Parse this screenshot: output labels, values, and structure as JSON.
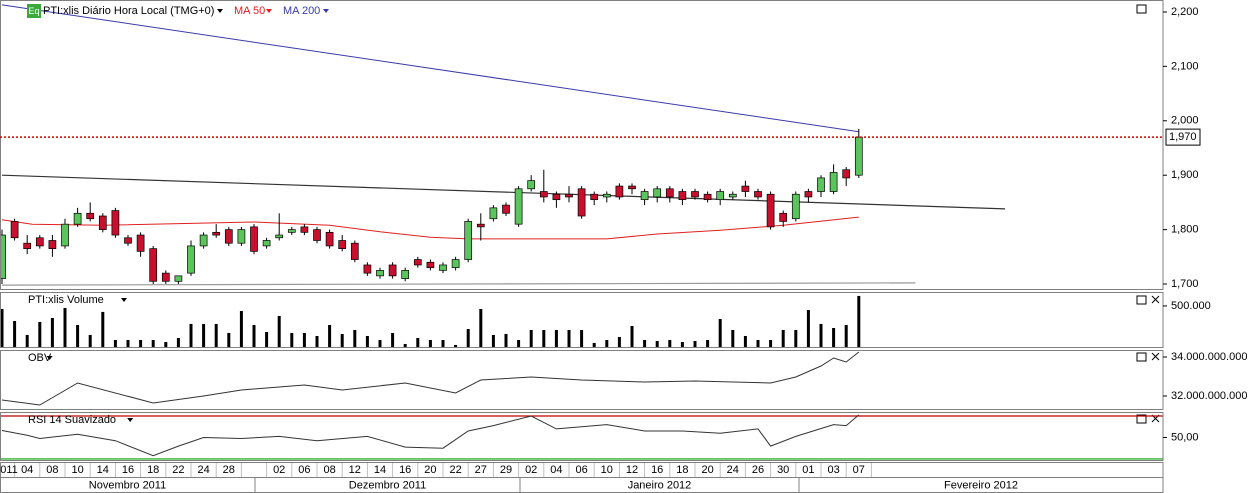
{
  "chart_data": [
    {
      "type": "candlestick",
      "badge": "Eq",
      "title": "PTI:xlis Diário Hora Local (TMG+0)",
      "open": [
        1710,
        1815,
        1775,
        1785,
        1780,
        1770,
        1810,
        1830,
        1825,
        1835,
        1785,
        1790,
        1765,
        1720,
        1705,
        1720,
        1770,
        1795,
        1800,
        1775,
        1805,
        1770,
        1785,
        1795,
        1805,
        1800,
        1795,
        1780,
        1775,
        1735,
        1715,
        1735,
        1710,
        1745,
        1740,
        1725,
        1730,
        1745,
        1810,
        1820,
        1845,
        1810,
        1875,
        1870,
        1865,
        1865,
        1875,
        1865,
        1860,
        1880,
        1880,
        1855,
        1860,
        1875,
        1870,
        1870,
        1865,
        1855,
        1860,
        1880,
        1870,
        1865,
        1830,
        1820,
        1870,
        1870,
        1870,
        1910,
        1900
      ],
      "high": [
        1800,
        1820,
        1790,
        1790,
        1790,
        1820,
        1840,
        1850,
        1830,
        1840,
        1790,
        1795,
        1770,
        1725,
        1715,
        1780,
        1795,
        1810,
        1805,
        1805,
        1810,
        1785,
        1830,
        1805,
        1810,
        1805,
        1800,
        1790,
        1780,
        1740,
        1730,
        1740,
        1730,
        1750,
        1745,
        1740,
        1750,
        1820,
        1830,
        1845,
        1850,
        1880,
        1900,
        1910,
        1870,
        1880,
        1880,
        1870,
        1870,
        1885,
        1885,
        1875,
        1880,
        1880,
        1875,
        1875,
        1870,
        1875,
        1870,
        1890,
        1875,
        1870,
        1835,
        1870,
        1875,
        1900,
        1920,
        1915,
        1985
      ],
      "low": [
        1700,
        1780,
        1755,
        1765,
        1750,
        1765,
        1805,
        1815,
        1795,
        1785,
        1770,
        1750,
        1700,
        1700,
        1700,
        1715,
        1765,
        1785,
        1770,
        1770,
        1755,
        1765,
        1780,
        1790,
        1790,
        1775,
        1765,
        1760,
        1740,
        1715,
        1710,
        1710,
        1705,
        1730,
        1725,
        1720,
        1725,
        1740,
        1780,
        1815,
        1825,
        1805,
        1870,
        1850,
        1840,
        1850,
        1820,
        1845,
        1850,
        1855,
        1865,
        1845,
        1850,
        1850,
        1845,
        1855,
        1850,
        1845,
        1855,
        1860,
        1855,
        1800,
        1805,
        1815,
        1850,
        1860,
        1865,
        1880,
        1895
      ],
      "close": [
        1790,
        1785,
        1765,
        1770,
        1765,
        1810,
        1830,
        1820,
        1800,
        1790,
        1775,
        1760,
        1705,
        1705,
        1715,
        1770,
        1790,
        1790,
        1775,
        1800,
        1760,
        1780,
        1790,
        1800,
        1795,
        1780,
        1770,
        1765,
        1745,
        1720,
        1725,
        1715,
        1725,
        1735,
        1730,
        1735,
        1745,
        1815,
        1805,
        1840,
        1830,
        1875,
        1890,
        1860,
        1855,
        1860,
        1825,
        1855,
        1865,
        1860,
        1875,
        1870,
        1875,
        1860,
        1855,
        1860,
        1855,
        1870,
        1865,
        1870,
        1860,
        1805,
        1815,
        1865,
        1860,
        1895,
        1905,
        1895,
        1970
      ],
      "up_color": "#5cc45c",
      "down_color": "#c8102e",
      "series": [
        {
          "name": "MA 50",
          "color": "#e02020",
          "x": [
            0,
            2.4,
            8,
            20,
            26,
            30,
            34,
            37,
            41,
            48,
            52,
            57,
            62,
            68
          ],
          "values": [
            1818,
            1810,
            1808,
            1814,
            1808,
            1796,
            1786,
            1783,
            1783,
            1783,
            1792,
            1799,
            1808,
            1823
          ]
        },
        {
          "name": "MA 200",
          "color": "#3a3aa8",
          "x": [
            0,
            68
          ],
          "values": [
            2213,
            1980
          ]
        }
      ],
      "trendlines": [
        {
          "color": "#333333",
          "x": [
            0,
            79.6
          ],
          "values": [
            1900,
            1838
          ]
        },
        {
          "color": "#999999",
          "x": [
            0,
            72.5
          ],
          "values": [
            1698,
            1702
          ]
        }
      ],
      "last": {
        "value": 1970,
        "label": "1,970"
      },
      "last_color": "#d00000",
      "ylim": [
        1689,
        2222
      ],
      "yticks": [
        {
          "value": 1700,
          "label": "1,700"
        },
        {
          "value": 1800,
          "label": "1,800"
        },
        {
          "value": 1900,
          "label": "1,900"
        },
        {
          "value": 2000,
          "label": "2,000"
        },
        {
          "value": 2100,
          "label": "2,100"
        },
        {
          "value": 2200,
          "label": "2,200"
        }
      ]
    },
    {
      "type": "bar",
      "title": "PTI:xlis Volume",
      "color": "#000000",
      "values": [
        464000,
        321000,
        155000,
        310000,
        357000,
        476000,
        274000,
        155000,
        429000,
        95000,
        95000,
        95000,
        95000,
        71000,
        119000,
        286000,
        286000,
        286000,
        179000,
        440000,
        274000,
        190000,
        381000,
        179000,
        179000,
        143000,
        274000,
        167000,
        214000,
        143000,
        95000,
        179000,
        48000,
        119000,
        95000,
        95000,
        36000,
        226000,
        464000,
        155000,
        167000,
        95000,
        214000,
        214000,
        214000,
        214000,
        214000,
        60000,
        95000,
        131000,
        262000,
        95000,
        83000,
        95000,
        71000,
        83000,
        95000,
        345000,
        214000,
        143000,
        95000,
        95000,
        214000,
        214000,
        452000,
        286000,
        238000,
        274000,
        619000
      ],
      "ylim": [
        0,
        666000
      ],
      "yticks": [
        {
          "value": 500000,
          "label": "500.000"
        }
      ]
    },
    {
      "type": "line",
      "title": "OBV",
      "color": "#333333",
      "x": [
        0,
        3,
        6,
        12,
        16,
        19,
        24,
        27,
        32,
        36,
        38,
        42,
        46,
        51,
        55,
        61,
        63,
        65,
        66,
        67,
        68
      ],
      "values": [
        31795000000,
        31538000000,
        32667000000,
        31641000000,
        32000000000,
        32308000000,
        32564000000,
        32308000000,
        32667000000,
        32154000000,
        32821000000,
        32974000000,
        32821000000,
        32718000000,
        32769000000,
        32667000000,
        32974000000,
        33538000000,
        33949000000,
        33744000000,
        34256000000
      ],
      "ylim": [
        31280000000,
        34360000000
      ],
      "yticks": [
        {
          "value": 32000000000,
          "label": "32.000.000.000"
        },
        {
          "value": 34000000000,
          "label": "34.000.000.000"
        }
      ]
    },
    {
      "type": "line",
      "title": "RSI 14 Suavizado",
      "color": "#333333",
      "x": [
        0,
        2,
        3,
        6,
        9,
        12,
        14,
        16,
        19,
        22,
        25,
        29,
        32,
        35,
        37,
        39,
        42,
        44,
        48,
        51,
        54,
        57,
        60,
        61,
        63,
        66,
        67,
        68
      ],
      "values": [
        56.5,
        52,
        49,
        53,
        47,
        33,
        42,
        50,
        49,
        51,
        47,
        51,
        41,
        40,
        56,
        61,
        70,
        58,
        62,
        56,
        56,
        54,
        58,
        42,
        51,
        62,
        61,
        71
      ],
      "levels": [
        {
          "value": 70,
          "color": "#c00000"
        },
        {
          "value": 30,
          "color": "#00a000"
        }
      ],
      "ylim": [
        28.1,
        73.7
      ],
      "yticks": [
        {
          "value": 50,
          "label": "50,00"
        }
      ]
    }
  ],
  "x_axis": {
    "labels": [
      "011",
      "04",
      "08",
      "10",
      "14",
      "16",
      "18",
      "22",
      "24",
      "28",
      null,
      "02",
      "06",
      "08",
      "12",
      "14",
      "16",
      "20",
      "22",
      "27",
      "29",
      "02",
      "04",
      "06",
      "10",
      "12",
      "16",
      "18",
      "20",
      "24",
      "26",
      "30",
      "01",
      "03",
      "07"
    ],
    "months": [
      "Novembro 2011",
      "Dezembro 2011",
      "Janeiro 2012",
      "Fevereiro 2012"
    ]
  }
}
